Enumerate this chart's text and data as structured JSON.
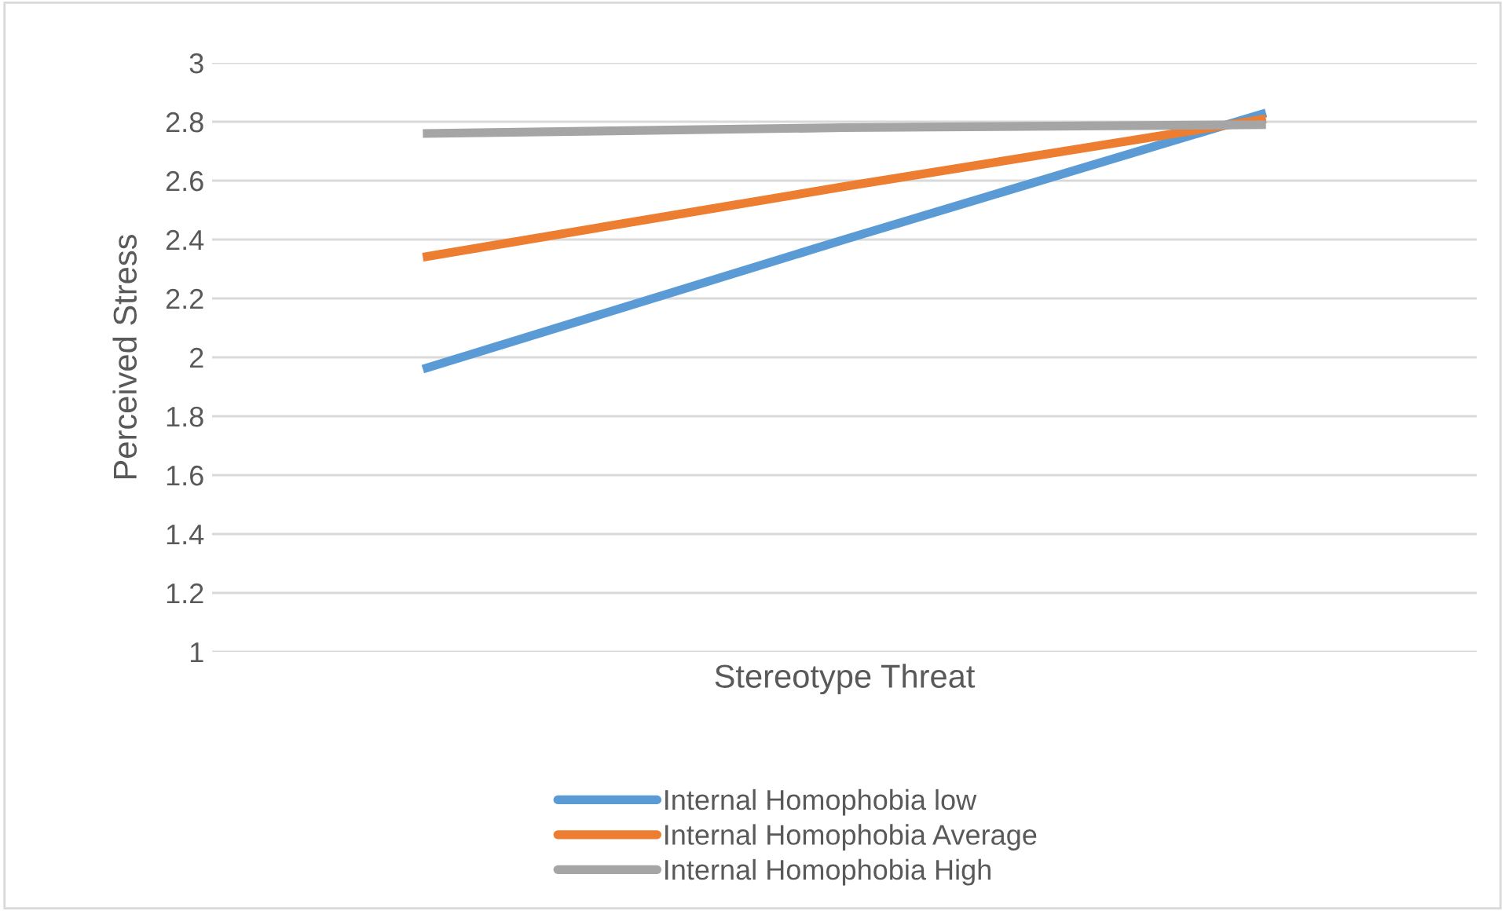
{
  "chart_data": {
    "type": "line",
    "xlabel": "Stereotype Threat",
    "ylabel": "Perceived Stress",
    "categories": [
      null,
      null,
      null
    ],
    "series": [
      {
        "name": "Internal Homophobia low",
        "color": "#5b9bd5",
        "values": [
          1.96,
          2.4,
          2.83
        ]
      },
      {
        "name": "Internal Homophobia Average",
        "color": "#ed7d31",
        "values": [
          2.34,
          2.58,
          2.81
        ]
      },
      {
        "name": "Internal Homophobia High",
        "color": "#a5a5a5",
        "values": [
          2.76,
          2.78,
          2.79
        ]
      }
    ],
    "ylim": [
      1,
      3
    ],
    "yticks": [
      1,
      1.2,
      1.4,
      1.6,
      1.8,
      2,
      2.2,
      2.4,
      2.6,
      2.8,
      3
    ],
    "grid": "y",
    "legend": "bottom",
    "marker": "none",
    "line_style": "solid"
  }
}
